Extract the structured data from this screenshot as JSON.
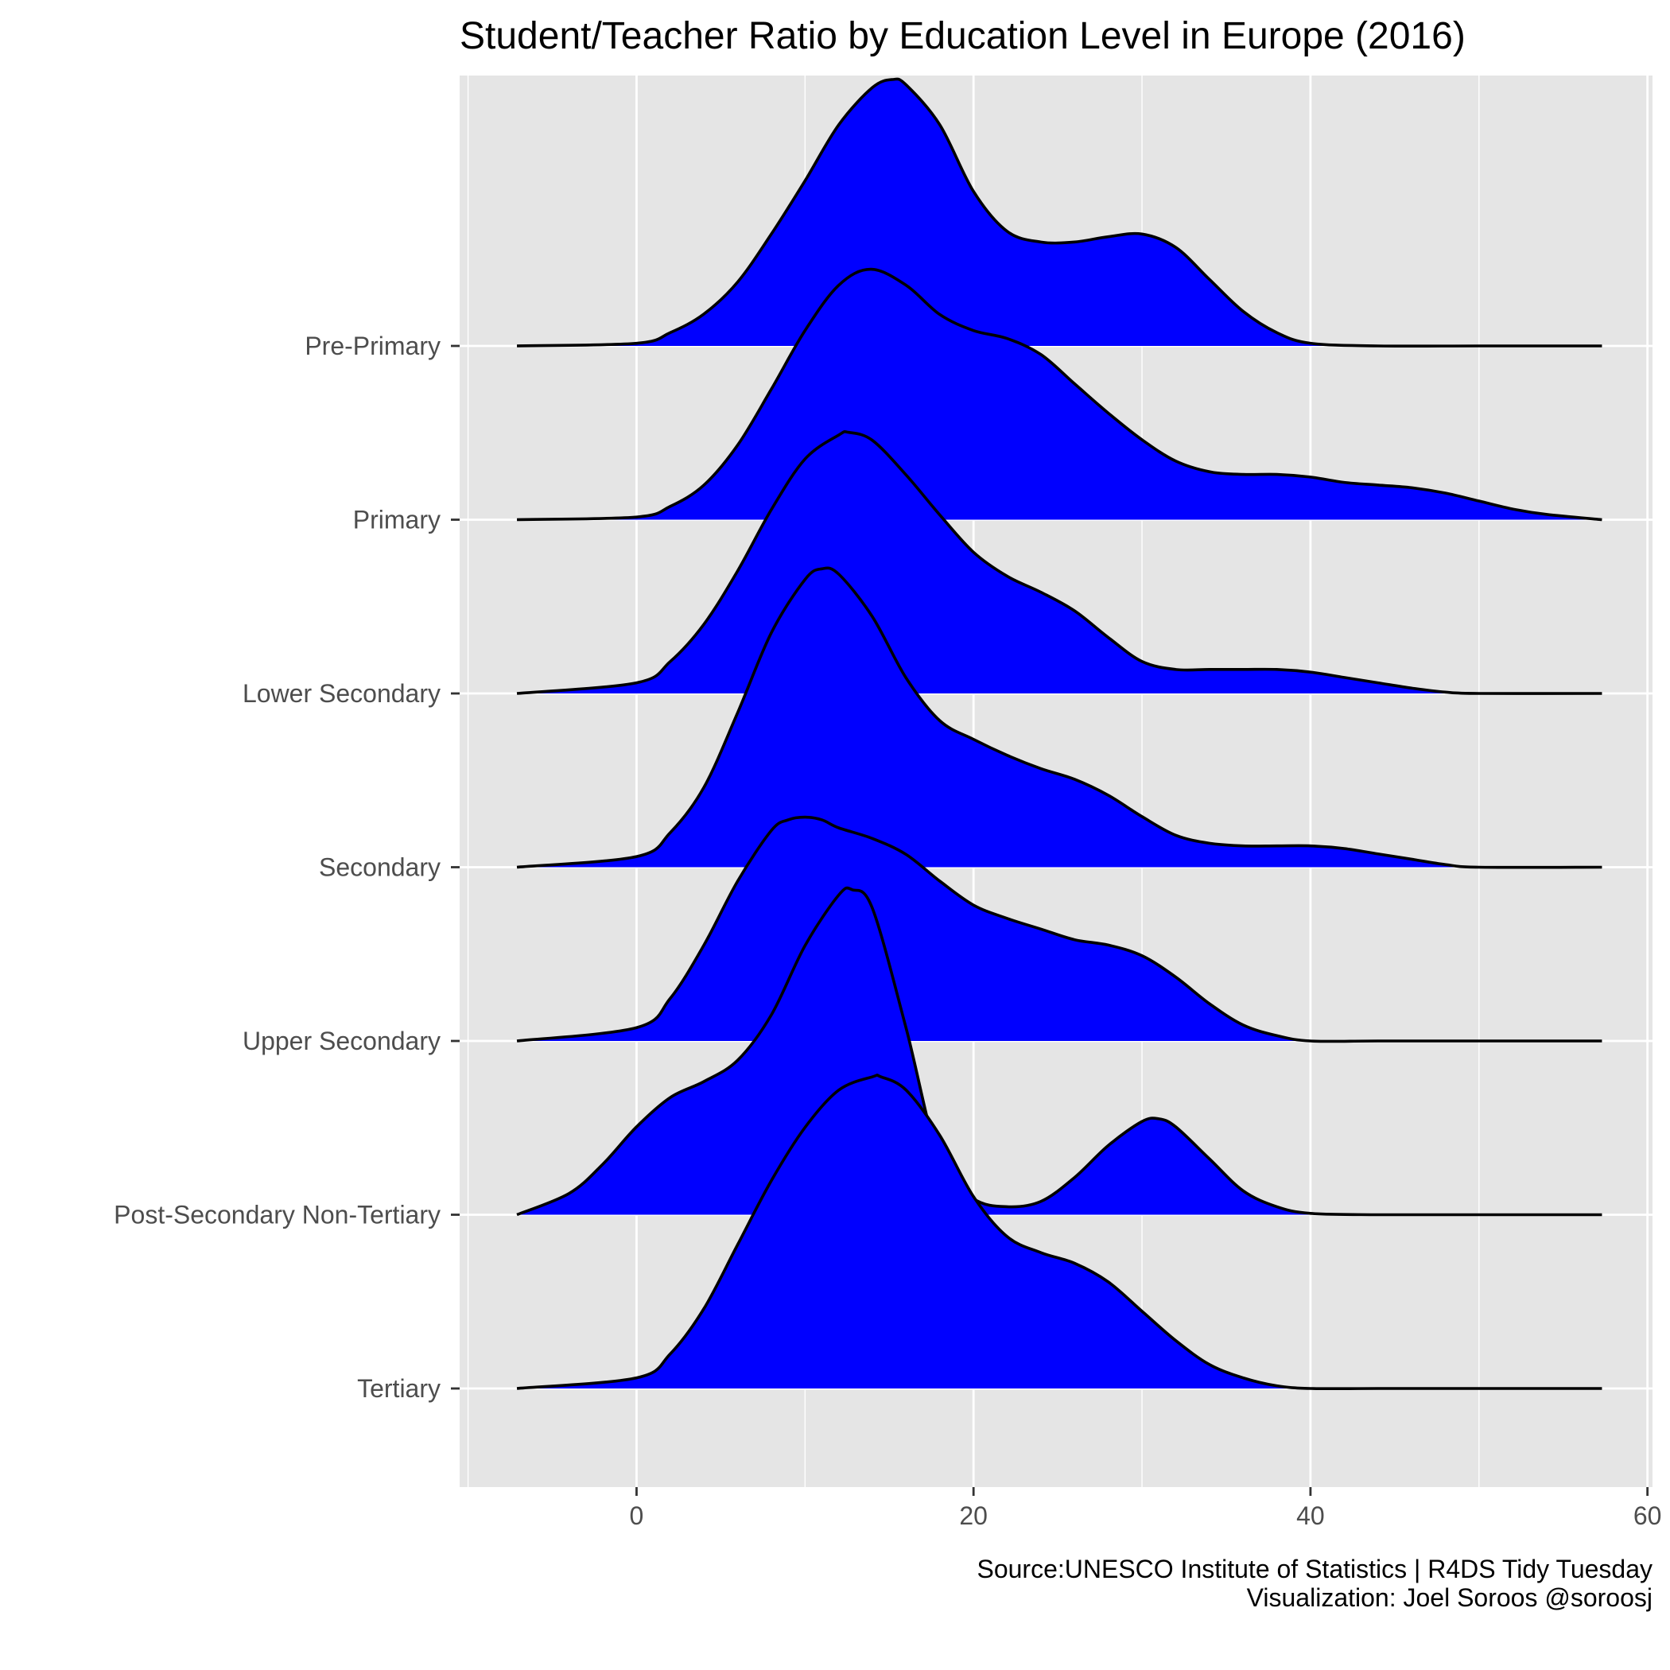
{
  "chart_data": {
    "type": "ridgeline",
    "title": "Student/Teacher Ratio by Education Level in Europe (2016)",
    "xlabel": "",
    "ylabel": "",
    "xlim": [
      -10.5,
      60.3
    ],
    "x_ticks": [
      0,
      20,
      40,
      60
    ],
    "x_minor_ticks": [
      -10,
      10,
      30,
      50
    ],
    "grid": true,
    "fill_color": "#0000ff",
    "line_color": "#000000",
    "panel_color": "#e5e5e5",
    "grid_color": "#ffffff",
    "caption_lines": [
      "Source:UNESCO Institute of Statistics  |  R4DS Tidy Tuesday",
      "Visualization: Joel Soroos @soroosj"
    ],
    "categories": [
      "Pre-Primary",
      "Primary",
      "Lower Secondary",
      "Secondary",
      "Upper Secondary",
      "Post-Secondary Non-Tertiary",
      "Tertiary"
    ],
    "series": [
      {
        "name": "Pre-Primary",
        "x": [
          -7.1,
          0,
          2,
          4,
          6,
          8,
          10,
          12,
          14,
          15.2,
          16,
          18,
          20,
          22,
          24,
          26,
          28,
          30,
          32,
          34,
          36,
          38,
          40,
          44,
          50,
          57.3
        ],
        "y": [
          0,
          0.01,
          0.05,
          0.12,
          0.24,
          0.42,
          0.62,
          0.83,
          0.97,
          1.0,
          0.98,
          0.83,
          0.58,
          0.43,
          0.39,
          0.39,
          0.41,
          0.42,
          0.37,
          0.25,
          0.13,
          0.05,
          0.01,
          0,
          0,
          0
        ]
      },
      {
        "name": "Primary",
        "x": [
          -7.1,
          0,
          2,
          4,
          6,
          8,
          10,
          12,
          13.9,
          16,
          18,
          20,
          22,
          24,
          26,
          28,
          30,
          32,
          34,
          36,
          38,
          40,
          42,
          44,
          46,
          48,
          50,
          52,
          54,
          57.3
        ],
        "y": [
          0,
          0.01,
          0.05,
          0.13,
          0.28,
          0.49,
          0.71,
          0.88,
          0.94,
          0.88,
          0.77,
          0.71,
          0.68,
          0.62,
          0.51,
          0.4,
          0.3,
          0.22,
          0.18,
          0.17,
          0.17,
          0.16,
          0.14,
          0.13,
          0.12,
          0.1,
          0.07,
          0.04,
          0.02,
          0
        ]
      },
      {
        "name": "Lower Secondary",
        "x": [
          -7.1,
          0,
          2,
          4,
          6,
          8,
          10,
          12,
          12.6,
          14,
          16,
          18,
          20,
          22,
          24,
          26,
          28,
          30,
          32,
          34,
          36,
          38,
          40,
          42,
          44,
          46,
          48,
          50,
          57.3
        ],
        "y": [
          0,
          0.04,
          0.12,
          0.26,
          0.46,
          0.69,
          0.88,
          0.97,
          0.98,
          0.95,
          0.82,
          0.67,
          0.53,
          0.44,
          0.38,
          0.31,
          0.21,
          0.12,
          0.09,
          0.09,
          0.09,
          0.09,
          0.08,
          0.06,
          0.04,
          0.02,
          0.005,
          0,
          0
        ]
      },
      {
        "name": "Secondary",
        "x": [
          -7.1,
          0,
          2,
          4,
          6,
          8,
          10,
          11,
          12,
          14,
          16,
          18,
          20,
          22,
          24,
          26,
          28,
          30,
          32,
          34,
          36,
          38,
          40,
          42,
          44,
          46,
          48,
          50,
          57.3
        ],
        "y": [
          0,
          0.04,
          0.13,
          0.3,
          0.58,
          0.88,
          1.08,
          1.12,
          1.1,
          0.94,
          0.71,
          0.55,
          0.48,
          0.42,
          0.37,
          0.33,
          0.27,
          0.19,
          0.12,
          0.09,
          0.08,
          0.08,
          0.08,
          0.07,
          0.05,
          0.03,
          0.01,
          0,
          0
        ]
      },
      {
        "name": "Upper Secondary",
        "x": [
          -7.1,
          0,
          2,
          4,
          6,
          8,
          9,
          10,
          11,
          12,
          14,
          16,
          18,
          20,
          22,
          24,
          26,
          28,
          30,
          32,
          34,
          36,
          38,
          40,
          44,
          50,
          57.3
        ],
        "y": [
          0,
          0.05,
          0.16,
          0.36,
          0.6,
          0.79,
          0.83,
          0.84,
          0.83,
          0.8,
          0.76,
          0.7,
          0.6,
          0.51,
          0.46,
          0.42,
          0.38,
          0.36,
          0.32,
          0.24,
          0.14,
          0.06,
          0.02,
          0,
          0,
          0,
          0
        ]
      },
      {
        "name": "Post-Secondary Non-Tertiary",
        "x": [
          -7.1,
          -4,
          -2,
          0,
          2,
          4,
          6,
          8,
          10,
          12,
          12.8,
          14,
          16,
          18,
          20,
          22,
          24,
          26,
          28,
          30,
          31,
          32,
          34,
          36,
          38,
          40,
          44,
          50,
          57.3
        ],
        "y": [
          0,
          0.08,
          0.19,
          0.33,
          0.44,
          0.5,
          0.58,
          0.75,
          1.01,
          1.2,
          1.22,
          1.15,
          0.7,
          0.2,
          0.06,
          0.03,
          0.05,
          0.14,
          0.26,
          0.35,
          0.36,
          0.33,
          0.21,
          0.09,
          0.03,
          0.005,
          0,
          0,
          0
        ]
      },
      {
        "name": "Tertiary",
        "x": [
          -7.1,
          0,
          2,
          4,
          6,
          8,
          10,
          12,
          14,
          14.5,
          16,
          18,
          20,
          22,
          24,
          26,
          28,
          30,
          32,
          34,
          36,
          38,
          40,
          44,
          50,
          57.3
        ],
        "y": [
          0,
          0.04,
          0.13,
          0.3,
          0.54,
          0.78,
          0.98,
          1.12,
          1.17,
          1.17,
          1.12,
          0.95,
          0.72,
          0.57,
          0.51,
          0.47,
          0.4,
          0.29,
          0.18,
          0.09,
          0.04,
          0.01,
          0,
          0,
          0,
          0
        ]
      }
    ]
  }
}
